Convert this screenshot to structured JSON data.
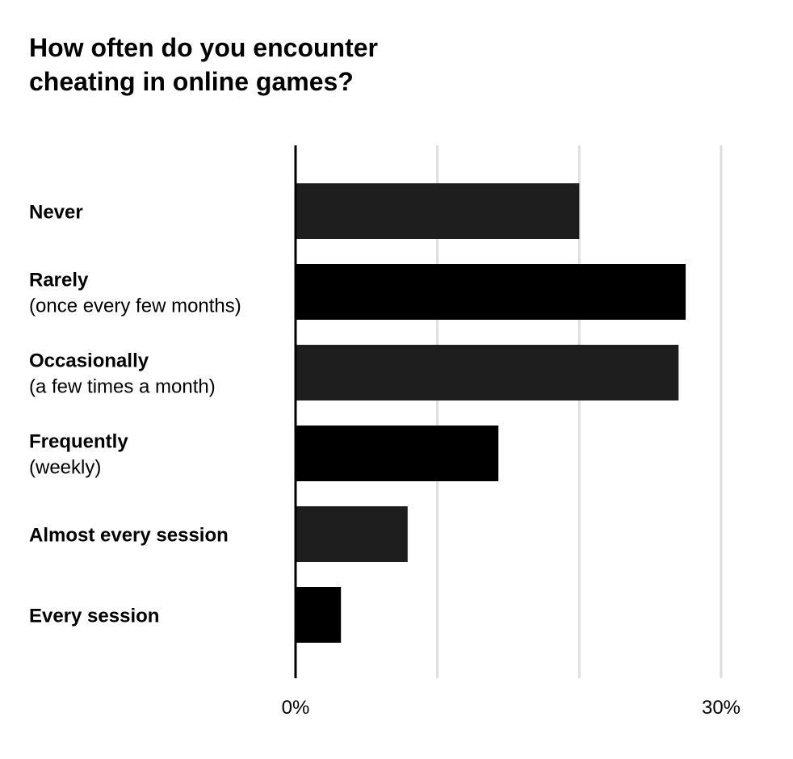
{
  "chart_data": {
    "type": "bar",
    "orientation": "horizontal",
    "title": "How often do you encounter\ncheating in online games?",
    "categories": [
      {
        "main": "Never",
        "sub": ""
      },
      {
        "main": "Rarely",
        "sub": "(once every few months)"
      },
      {
        "main": "Occasionally",
        "sub": "(a few times a month)"
      },
      {
        "main": "Frequently",
        "sub": "(weekly)"
      },
      {
        "main": "Almost every session",
        "sub": ""
      },
      {
        "main": "Every session",
        "sub": ""
      }
    ],
    "values": [
      20,
      27.5,
      27,
      14.3,
      7.9,
      3.2
    ],
    "xlim": [
      0,
      30
    ],
    "gridlines": [
      10,
      20
    ],
    "tick_labels": [
      {
        "value": 0,
        "label": "0%"
      },
      {
        "value": 30,
        "label": "30%"
      }
    ],
    "grid": true,
    "colors": {
      "bar_primary": "#1e1e1e",
      "bar_alternate": "#000000",
      "grid": "#dddddd",
      "axis": "#000000"
    }
  }
}
